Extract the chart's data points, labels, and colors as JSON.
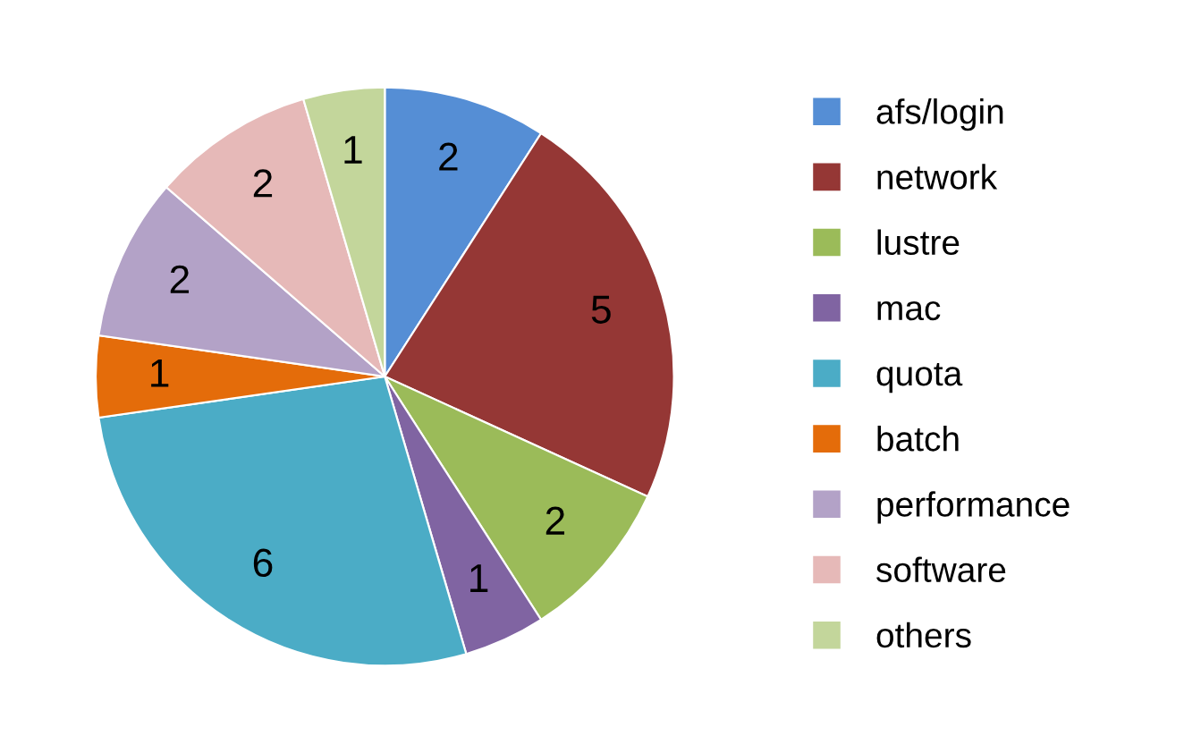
{
  "chart_data": {
    "type": "pie",
    "categories": [
      "afs/login",
      "network",
      "lustre",
      "mac",
      "quota",
      "batch",
      "performance",
      "software",
      "others"
    ],
    "values": [
      2,
      5,
      2,
      1,
      6,
      1,
      2,
      2,
      1
    ],
    "colors": [
      "#558ed5",
      "#953735",
      "#9bbb59",
      "#8064a2",
      "#4bacc6",
      "#e46c0a",
      "#b3a2c7",
      "#e6b9b8",
      "#c3d69b"
    ],
    "data_labels": true,
    "legend": "right"
  }
}
